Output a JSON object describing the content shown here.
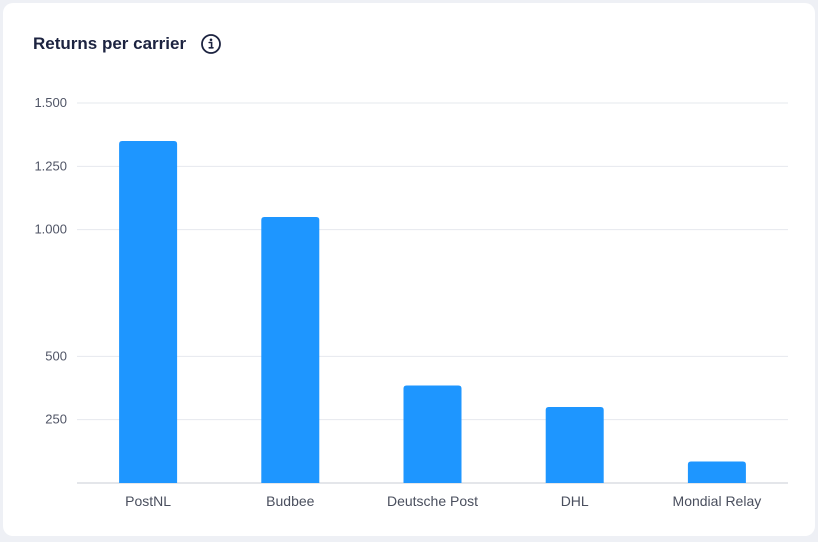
{
  "card": {
    "title": "Returns per carrier",
    "info_icon": "info-circle-icon"
  },
  "colors": {
    "bar": "#1e96ff",
    "grid": "#e6e8ee",
    "axis": "#c9ccd4",
    "title": "#1c2340"
  },
  "chart_data": {
    "type": "bar",
    "title": "Returns per carrier",
    "xlabel": "",
    "ylabel": "",
    "categories": [
      "PostNL",
      "Budbee",
      "Deutsche Post",
      "DHL",
      "Mondial Relay"
    ],
    "values": [
      1350,
      1050,
      385,
      300,
      85
    ],
    "yticks": [
      {
        "value": 250,
        "label": "250"
      },
      {
        "value": 500,
        "label": "500"
      },
      {
        "value": 1000,
        "label": "1.000"
      },
      {
        "value": 1250,
        "label": "1.250"
      },
      {
        "value": 1500,
        "label": "1.500"
      }
    ],
    "ylim": [
      0,
      1500
    ],
    "grid": true,
    "legend": "none"
  }
}
